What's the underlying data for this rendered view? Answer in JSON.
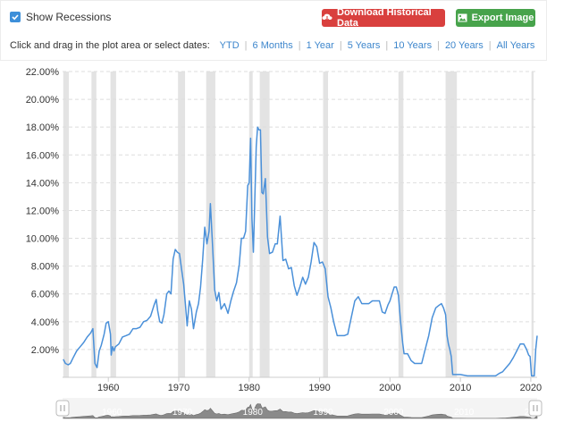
{
  "controls": {
    "show_recessions_label": "Show Recessions",
    "download_label": "Download Historical Data",
    "export_label": "Export Image",
    "range_prompt": "Click and drag in the plot area or select dates:",
    "ranges": [
      "YTD",
      "6 Months",
      "1 Year",
      "5 Years",
      "10 Years",
      "20 Years",
      "All Years"
    ]
  },
  "colors": {
    "line": "#4a90d9",
    "recession": "#e3e3e3",
    "grid": "#dddddd",
    "download_button": "#d9403e",
    "export_button": "#47a34b",
    "link": "#3d86cc"
  },
  "icons": {
    "download": "cloud-download-icon",
    "export": "image-icon",
    "checkbox": "check-icon"
  },
  "chart_data": {
    "type": "line",
    "title": "",
    "xlabel": "",
    "ylabel": "",
    "xlim": [
      1953.5,
      2020.9
    ],
    "ylim": [
      0,
      22
    ],
    "y_ticks": [
      "2.00%",
      "4.00%",
      "6.00%",
      "8.00%",
      "10.00%",
      "12.00%",
      "14.00%",
      "16.00%",
      "18.00%",
      "20.00%",
      "22.00%"
    ],
    "x_ticks": [
      "1960",
      "1970",
      "1980",
      "1990",
      "2000",
      "2010",
      "2020"
    ],
    "grid": true,
    "recessions": [
      [
        1953.6,
        1954.4
      ],
      [
        1957.6,
        1958.3
      ],
      [
        1960.3,
        1961.1
      ],
      [
        1969.9,
        1970.9
      ],
      [
        1973.9,
        1975.2
      ],
      [
        1980.0,
        1980.5
      ],
      [
        1981.5,
        1982.9
      ],
      [
        1990.5,
        1991.2
      ],
      [
        2001.2,
        2001.9
      ],
      [
        2007.9,
        2009.5
      ],
      [
        2020.1,
        2020.4
      ]
    ],
    "navigator_labels": [
      "1960",
      "1970",
      "1980",
      "1990",
      "2000",
      "2010",
      "2020"
    ],
    "series": [
      {
        "x": [
          1953.6,
          1953.9,
          1954.3,
          1954.6,
          1955.0,
          1955.5,
          1956.0,
          1956.5,
          1957.0,
          1957.5,
          1957.8,
          1958.1,
          1958.4,
          1958.7,
          1959.0,
          1959.4,
          1959.7,
          1960.0,
          1960.3,
          1960.4,
          1960.6,
          1960.8,
          1961.0,
          1961.5,
          1962.0,
          1962.5,
          1963.0,
          1963.5,
          1964.0,
          1964.5,
          1965.0,
          1965.5,
          1966.0,
          1966.5,
          1966.8,
          1967.0,
          1967.3,
          1967.6,
          1967.9,
          1968.3,
          1968.6,
          1968.9,
          1969.2,
          1969.5,
          1969.8,
          1970.1,
          1970.4,
          1970.7,
          1971.0,
          1971.2,
          1971.5,
          1971.8,
          1972.1,
          1972.5,
          1972.8,
          1973.1,
          1973.4,
          1973.7,
          1974.0,
          1974.3,
          1974.5,
          1974.8,
          1975.1,
          1975.4,
          1975.7,
          1976.0,
          1976.5,
          1977.0,
          1977.4,
          1977.8,
          1978.2,
          1978.6,
          1978.9,
          1979.2,
          1979.5,
          1979.8,
          1980.0,
          1980.2,
          1980.4,
          1980.6,
          1980.8,
          1981.0,
          1981.2,
          1981.4,
          1981.6,
          1981.8,
          1982.0,
          1982.3,
          1982.6,
          1982.9,
          1983.3,
          1983.7,
          1984.0,
          1984.4,
          1984.8,
          1985.2,
          1985.6,
          1986.0,
          1986.4,
          1986.8,
          1987.2,
          1987.6,
          1988.0,
          1988.4,
          1988.8,
          1989.2,
          1989.6,
          1990.0,
          1990.4,
          1990.8,
          1991.2,
          1991.6,
          1992.0,
          1992.5,
          1993.0,
          1993.5,
          1994.0,
          1994.5,
          1995.0,
          1995.5,
          1996.0,
          1996.5,
          1997.0,
          1997.5,
          1998.0,
          1998.5,
          1998.9,
          1999.3,
          1999.7,
          2000.0,
          2000.3,
          2000.6,
          2000.9,
          2001.2,
          2001.5,
          2001.8,
          2002.0,
          2002.5,
          2003.0,
          2003.5,
          2004.0,
          2004.5,
          2005.0,
          2005.5,
          2006.0,
          2006.5,
          2007.0,
          2007.3,
          2007.6,
          2007.9,
          2008.1,
          2008.3,
          2008.5,
          2008.7,
          2008.9,
          2009.2,
          2010.0,
          2011.0,
          2012.0,
          2013.0,
          2014.0,
          2015.0,
          2015.6,
          2016.0,
          2016.5,
          2017.0,
          2017.5,
          2018.0,
          2018.5,
          2019.0,
          2019.4,
          2019.7,
          2019.9,
          2020.1,
          2020.3,
          2020.5,
          2020.7,
          2020.9
        ],
        "y": [
          1.3,
          1.0,
          0.9,
          1.0,
          1.4,
          1.9,
          2.2,
          2.5,
          2.9,
          3.2,
          3.5,
          1.0,
          0.7,
          1.9,
          2.3,
          3.1,
          3.9,
          4.0,
          3.1,
          1.6,
          2.2,
          1.9,
          2.2,
          2.4,
          2.9,
          3.0,
          3.1,
          3.5,
          3.5,
          3.6,
          4.0,
          4.1,
          4.4,
          5.2,
          5.6,
          4.8,
          4.0,
          3.9,
          4.5,
          6.0,
          6.2,
          6.0,
          8.5,
          9.2,
          9.0,
          8.9,
          7.8,
          6.7,
          4.9,
          3.7,
          5.5,
          4.9,
          3.5,
          4.7,
          5.3,
          6.5,
          8.5,
          10.8,
          9.6,
          10.5,
          12.5,
          9.5,
          6.3,
          5.5,
          6.1,
          4.9,
          5.3,
          4.6,
          5.5,
          6.2,
          6.8,
          8.1,
          10.0,
          10.0,
          10.5,
          13.8,
          14.0,
          17.2,
          11.4,
          9.0,
          12.8,
          16.6,
          18.0,
          17.8,
          17.8,
          13.3,
          13.2,
          14.3,
          10.1,
          8.9,
          9.0,
          9.6,
          9.6,
          11.6,
          8.4,
          8.5,
          7.8,
          7.9,
          6.6,
          5.9,
          6.5,
          7.2,
          6.7,
          7.2,
          8.3,
          9.7,
          9.4,
          8.2,
          8.3,
          7.8,
          5.8,
          5.0,
          4.0,
          3.0,
          3.0,
          3.0,
          3.1,
          4.3,
          5.5,
          5.8,
          5.3,
          5.3,
          5.3,
          5.5,
          5.5,
          5.5,
          4.7,
          4.6,
          5.2,
          5.5,
          6.0,
          6.5,
          6.5,
          5.9,
          4.0,
          2.5,
          1.7,
          1.7,
          1.2,
          1.0,
          1.0,
          1.0,
          2.0,
          3.0,
          4.3,
          5.0,
          5.2,
          5.3,
          5.0,
          4.5,
          3.0,
          2.4,
          2.0,
          1.5,
          0.2,
          0.2,
          0.2,
          0.1,
          0.1,
          0.1,
          0.1,
          0.1,
          0.3,
          0.4,
          0.7,
          1.0,
          1.4,
          1.9,
          2.4,
          2.4,
          2.0,
          1.6,
          1.5,
          0.1,
          0.1,
          0.1,
          2.0,
          3.0
        ]
      }
    ]
  }
}
